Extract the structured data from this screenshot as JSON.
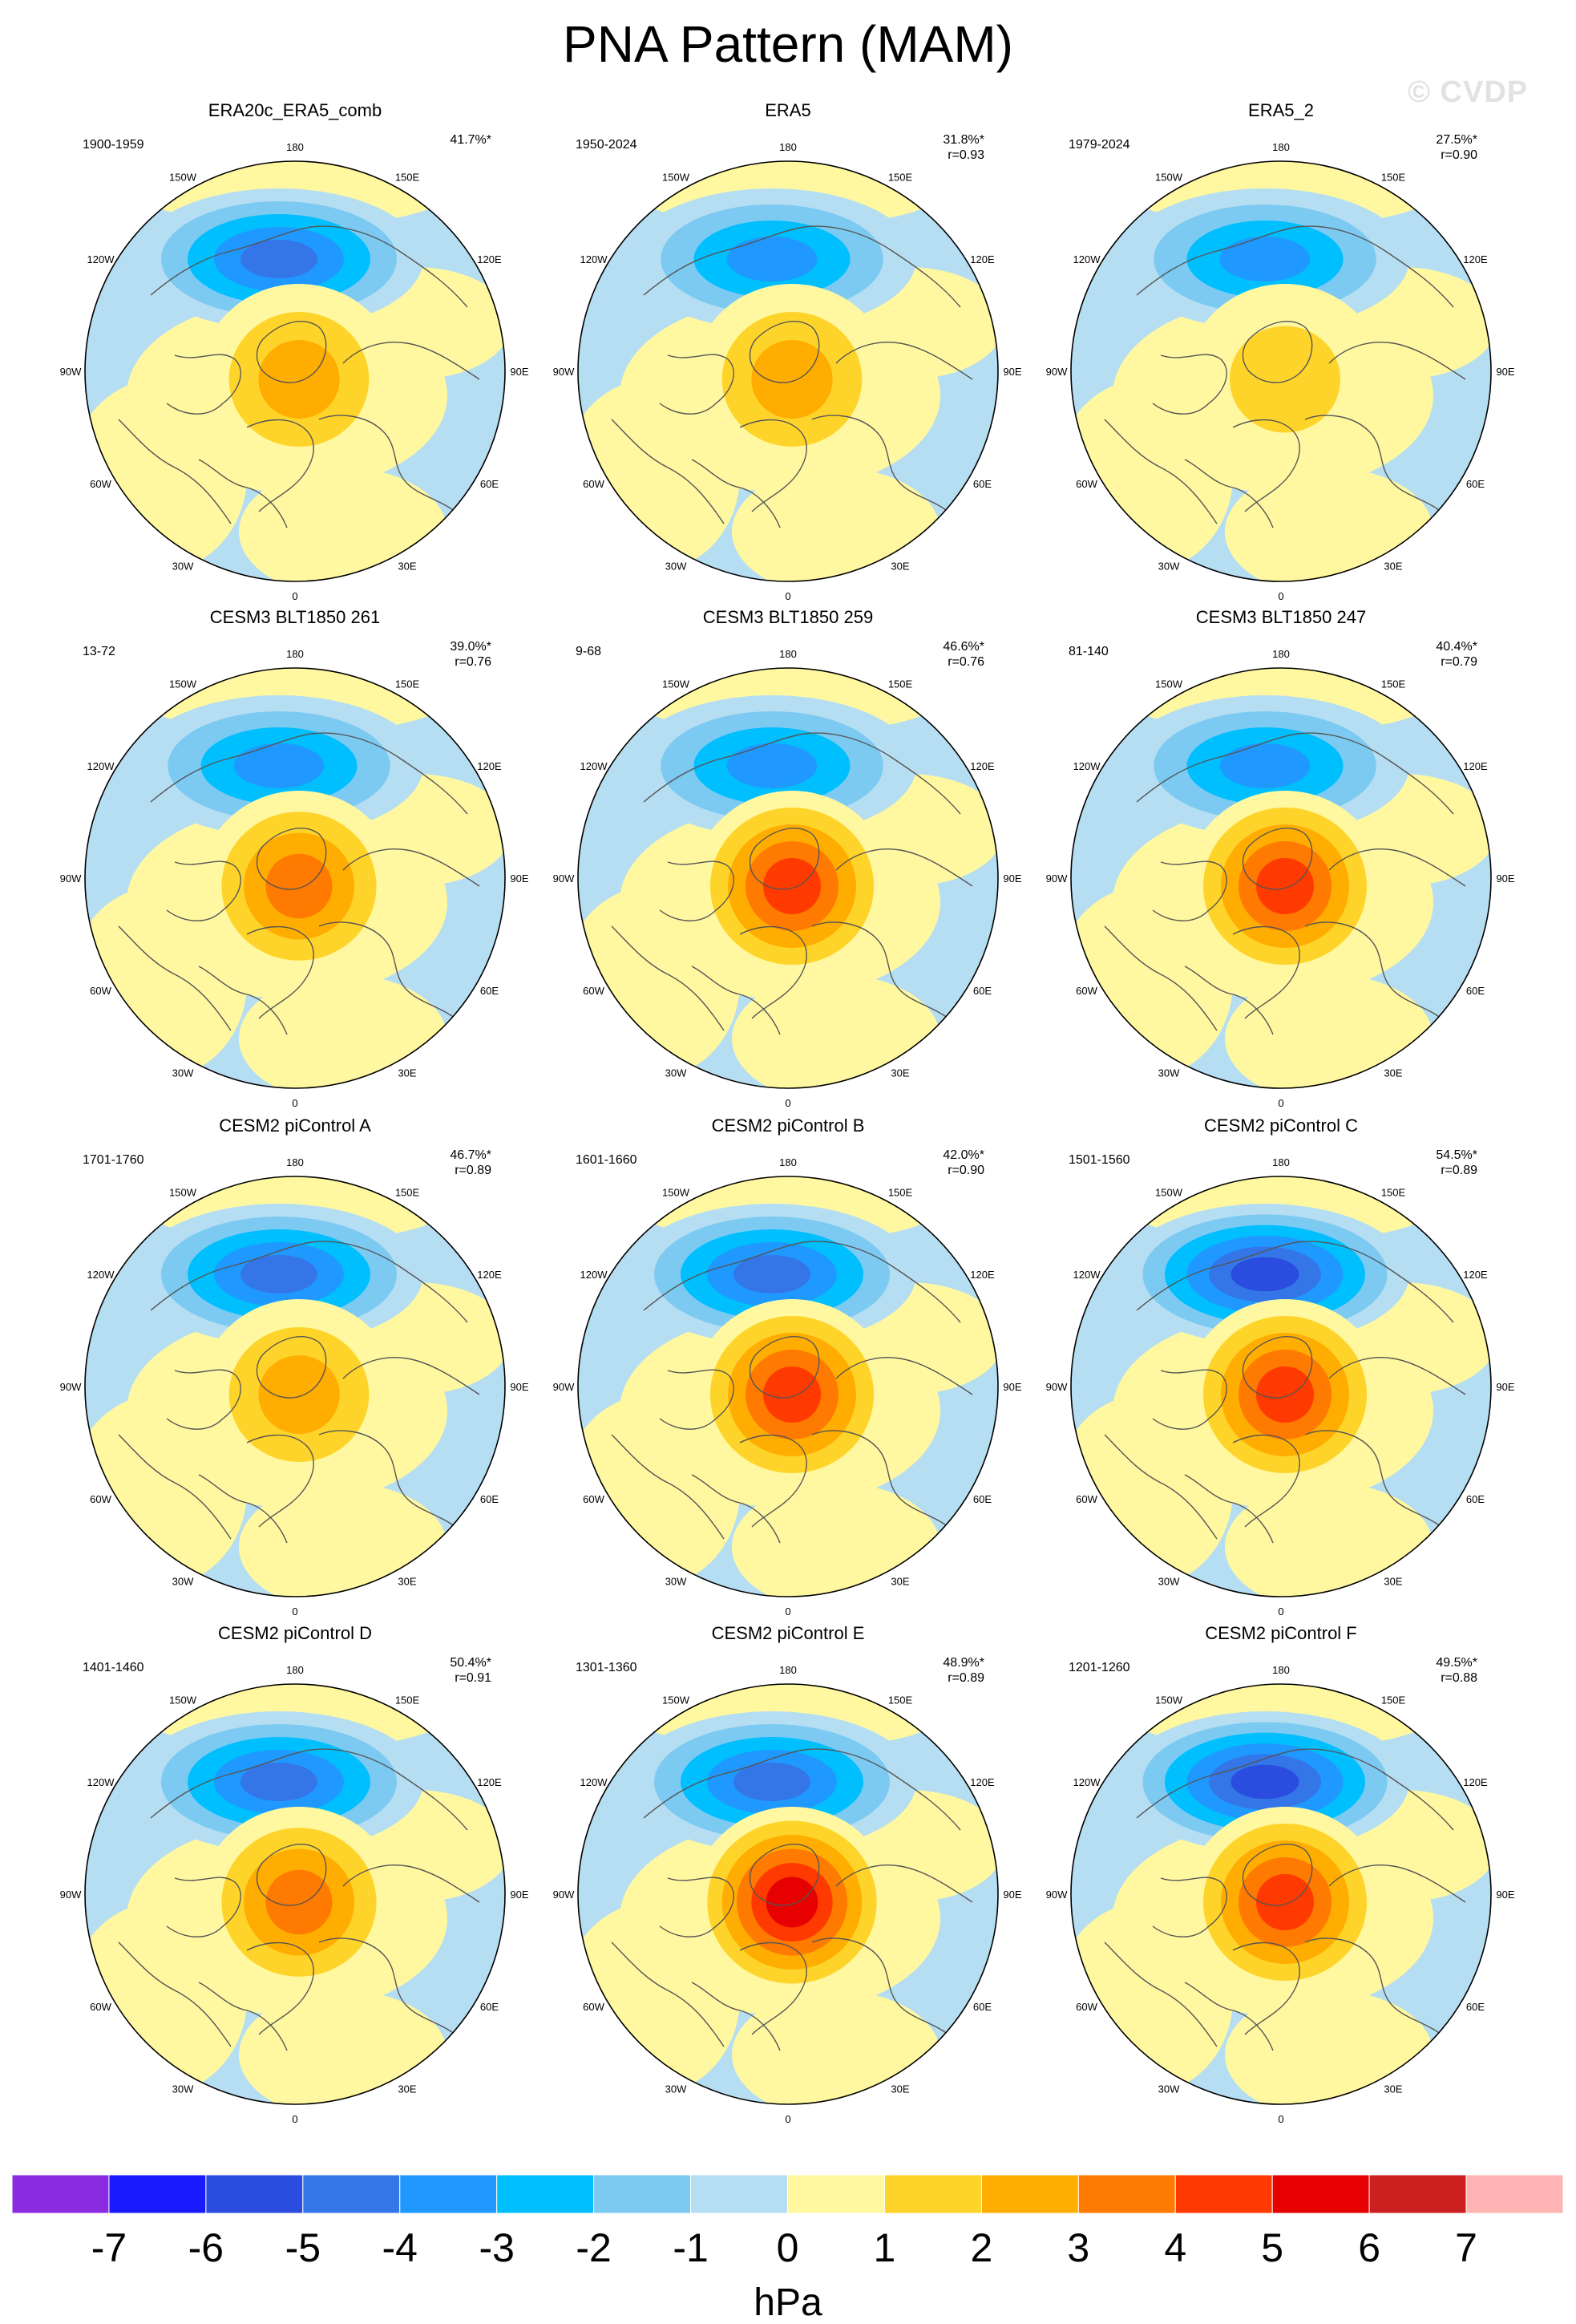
{
  "title": "PNA Pattern (MAM)",
  "watermark": "© CVDP",
  "units": "hPa",
  "colorbar": {
    "labels": [
      "-7",
      "-6",
      "-5",
      "-4",
      "-3",
      "-2",
      "-1",
      "0",
      "1",
      "2",
      "3",
      "4",
      "5",
      "6",
      "7"
    ],
    "colors": [
      "#8a2be2",
      "#1a1aff",
      "#2a4de0",
      "#3476e8",
      "#1f99ff",
      "#00bfff",
      "#7ccaf2",
      "#b6def2",
      "#fff8a0",
      "#ffd42a",
      "#ffad00",
      "#ff7a00",
      "#ff3a00",
      "#e60000",
      "#cc1f1f",
      "#ffb3b3"
    ]
  },
  "lon_labels": [
    "180",
    "150E",
    "120E",
    "90E",
    "60E",
    "30E",
    "0",
    "30W",
    "60W",
    "90W",
    "120W",
    "150W"
  ],
  "panels": [
    {
      "title": "ERA20c_ERA5_comb",
      "years": "1900-1959",
      "pct": "41.7%*",
      "r": "",
      "neg": -4.3,
      "pos": 2.3
    },
    {
      "title": "ERA5",
      "years": "1950-2024",
      "pct": "31.8%*",
      "r": "r=0.93",
      "neg": -3.6,
      "pos": 2.2
    },
    {
      "title": "ERA5_2",
      "years": "1979-2024",
      "pct": "27.5%*",
      "r": "r=0.90",
      "neg": -3.9,
      "pos": 1.4
    },
    {
      "title": "CESM3 BLT1850 261",
      "years": "13-72",
      "pct": "39.0%*",
      "r": "r=0.76",
      "neg": -3.6,
      "pos": 3.6
    },
    {
      "title": "CESM3 BLT1850 259",
      "years": "9-68",
      "pct": "46.6%*",
      "r": "r=0.76",
      "neg": -3.7,
      "pos": 4.5
    },
    {
      "title": "CESM3 BLT1850 247",
      "years": "81-140",
      "pct": "40.4%*",
      "r": "r=0.79",
      "neg": -3.8,
      "pos": 4.6
    },
    {
      "title": "CESM2 piControl A",
      "years": "1701-1760",
      "pct": "46.7%*",
      "r": "r=0.89",
      "neg": -4.7,
      "pos": 2.6
    },
    {
      "title": "CESM2 piControl B",
      "years": "1601-1660",
      "pct": "42.0%*",
      "r": "r=0.90",
      "neg": -4.4,
      "pos": 4.5
    },
    {
      "title": "CESM2 piControl C",
      "years": "1501-1560",
      "pct": "54.5%*",
      "r": "r=0.89",
      "neg": -5.4,
      "pos": 4.4
    },
    {
      "title": "CESM2 piControl D",
      "years": "1401-1460",
      "pct": "50.4%*",
      "r": "r=0.91",
      "neg": -4.5,
      "pos": 3.6
    },
    {
      "title": "CESM2 piControl E",
      "years": "1301-1360",
      "pct": "48.9%*",
      "r": "r=0.89",
      "neg": -4.6,
      "pos": 5.3
    },
    {
      "title": "CESM2 piControl F",
      "years": "1201-1260",
      "pct": "49.5%*",
      "r": "r=0.88",
      "neg": -5.1,
      "pos": 4.4
    }
  ]
}
